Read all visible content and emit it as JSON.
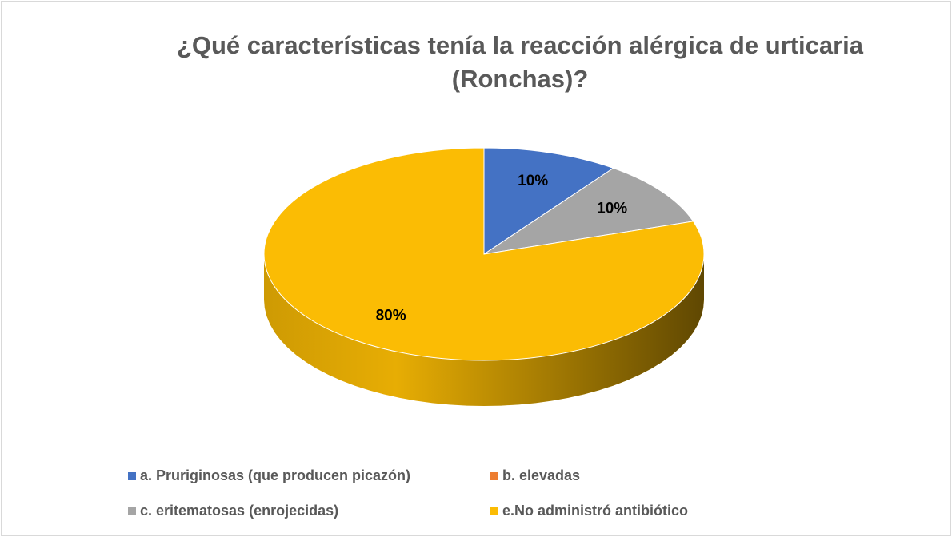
{
  "chart_data": {
    "type": "pie",
    "title": "¿Qué características tenía la reacción alérgica de urticaria (Ronchas)?",
    "categories": [
      "a. Pruriginosas (que producen picazón)",
      "b. elevadas",
      "c. eritematosas (enrojecidas)",
      "e.No administró antibiótico"
    ],
    "values": [
      10,
      0,
      10,
      80
    ],
    "value_labels": [
      "10%",
      null,
      "10%",
      "80%"
    ],
    "colors": [
      "#4472c4",
      "#ed7d31",
      "#a5a5a5",
      "#fbbc04"
    ],
    "legend": "bottom"
  }
}
